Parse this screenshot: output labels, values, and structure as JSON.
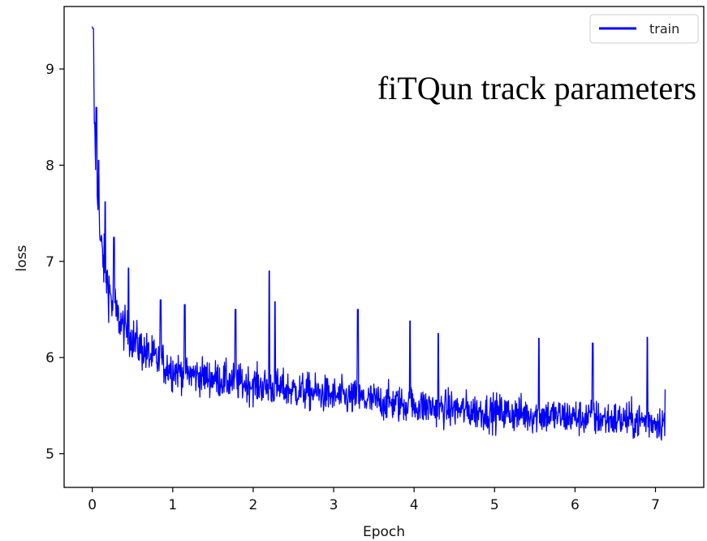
{
  "chart_data": {
    "type": "line",
    "title": "fiTQun track parameters",
    "xlabel": "Epoch",
    "ylabel": "loss",
    "xlim": [
      -0.35,
      7.6
    ],
    "ylim": [
      4.65,
      9.65
    ],
    "xticks": [
      0,
      1,
      2,
      3,
      4,
      5,
      6,
      7
    ],
    "yticks": [
      5,
      6,
      7,
      8,
      9
    ],
    "grid": false,
    "legend": {
      "position": "top-right",
      "entries": [
        "train"
      ]
    },
    "series": [
      {
        "name": "train",
        "color": "#0000ff",
        "x_start": 0.0,
        "x_end": 7.12,
        "x": [
          0.0,
          0.01,
          0.02,
          0.03,
          0.05,
          0.08,
          0.1,
          0.15,
          0.2,
          0.25,
          0.3,
          0.4,
          0.5,
          0.6,
          0.7,
          0.8,
          1.0,
          1.2,
          1.4,
          1.6,
          1.8,
          2.0,
          2.2,
          2.5,
          2.8,
          3.0,
          3.3,
          3.6,
          4.0,
          4.4,
          4.8,
          5.2,
          5.6,
          6.0,
          6.4,
          6.8,
          7.12
        ],
        "trend": [
          9.3,
          9.15,
          8.7,
          8.35,
          7.9,
          7.45,
          7.2,
          6.95,
          6.75,
          6.55,
          6.45,
          6.3,
          6.2,
          6.1,
          6.02,
          5.97,
          5.88,
          5.83,
          5.8,
          5.77,
          5.74,
          5.72,
          5.69,
          5.66,
          5.63,
          5.6,
          5.57,
          5.54,
          5.5,
          5.47,
          5.44,
          5.42,
          5.4,
          5.38,
          5.36,
          5.34,
          5.33
        ],
        "spikes": [
          {
            "x": 0.01,
            "y": 9.42
          },
          {
            "x": 0.05,
            "y": 8.6
          },
          {
            "x": 0.08,
            "y": 8.05
          },
          {
            "x": 0.16,
            "y": 7.62
          },
          {
            "x": 0.27,
            "y": 7.25
          },
          {
            "x": 0.45,
            "y": 6.93
          },
          {
            "x": 0.85,
            "y": 6.6
          },
          {
            "x": 1.15,
            "y": 6.55
          },
          {
            "x": 1.78,
            "y": 6.5
          },
          {
            "x": 2.2,
            "y": 6.9
          },
          {
            "x": 2.27,
            "y": 6.58
          },
          {
            "x": 3.3,
            "y": 6.5
          },
          {
            "x": 3.95,
            "y": 6.38
          },
          {
            "x": 4.3,
            "y": 6.25
          },
          {
            "x": 5.55,
            "y": 6.2
          },
          {
            "x": 6.22,
            "y": 6.15
          },
          {
            "x": 6.9,
            "y": 6.21
          }
        ],
        "min_value": 4.87,
        "final_value": 5.67
      }
    ]
  }
}
